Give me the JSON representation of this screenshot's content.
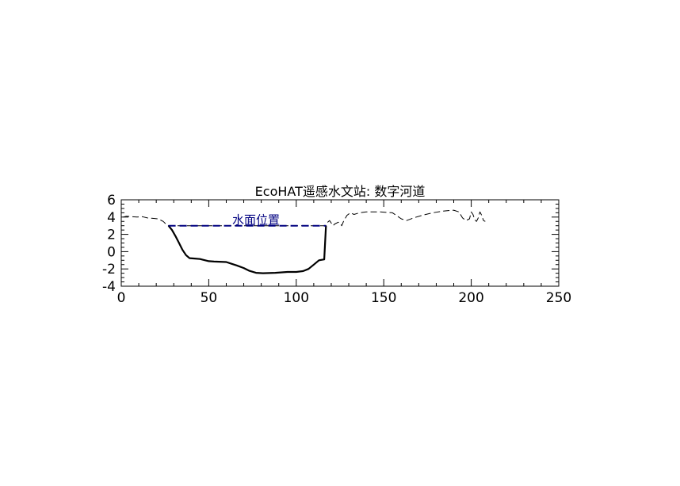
{
  "chart_data": {
    "type": "line",
    "title": "EcoHAT遥感水文站: 数字河道",
    "xlabel": "",
    "ylabel": "",
    "xlim": [
      0,
      250
    ],
    "ylim": [
      -4,
      6
    ],
    "x_ticks": [
      0,
      50,
      100,
      150,
      200,
      250
    ],
    "y_ticks": [
      -4,
      -2,
      0,
      2,
      4,
      6
    ],
    "x_minor_step": 10,
    "y_minor_step": 0.5,
    "grid": false,
    "annotations": [
      {
        "text": "水面位置",
        "x": 77,
        "y": 3.0
      }
    ],
    "series": [
      {
        "name": "",
        "style": "dashed",
        "color": "#000000",
        "points": [
          [
            1,
            4.0
          ],
          [
            3,
            4.1
          ],
          [
            6,
            4.05
          ],
          [
            9,
            4.0
          ],
          [
            12,
            4.05
          ],
          [
            15,
            3.9
          ],
          [
            18,
            3.85
          ],
          [
            21,
            3.8
          ],
          [
            24,
            3.5
          ],
          [
            26,
            3.1
          ],
          [
            27,
            3.0
          ],
          [
            117,
            3.0
          ],
          [
            118,
            3.4
          ],
          [
            119,
            3.6
          ],
          [
            120,
            3.3
          ],
          [
            121,
            3.0
          ],
          [
            122,
            3.2
          ],
          [
            124,
            3.4
          ],
          [
            125,
            3.3
          ],
          [
            126,
            3.0
          ],
          [
            127,
            3.5
          ],
          [
            129,
            4.2
          ],
          [
            131,
            4.5
          ],
          [
            133,
            4.3
          ],
          [
            136,
            4.5
          ],
          [
            140,
            4.6
          ],
          [
            148,
            4.6
          ],
          [
            155,
            4.5
          ],
          [
            160,
            3.8
          ],
          [
            163,
            3.6
          ],
          [
            167,
            3.9
          ],
          [
            172,
            4.2
          ],
          [
            178,
            4.5
          ],
          [
            184,
            4.7
          ],
          [
            190,
            4.8
          ],
          [
            193,
            4.6
          ],
          [
            195,
            3.9
          ],
          [
            197,
            3.6
          ],
          [
            199,
            3.8
          ],
          [
            200,
            4.6
          ],
          [
            201,
            4.3
          ],
          [
            202,
            3.7
          ],
          [
            203,
            3.5
          ],
          [
            204,
            3.9
          ],
          [
            205,
            4.6
          ],
          [
            206,
            4.2
          ],
          [
            207,
            3.6
          ],
          [
            208,
            3.5
          ]
        ]
      },
      {
        "name": "",
        "style": "solid",
        "color": "#000000",
        "points": [
          [
            27,
            3.0
          ],
          [
            29,
            2.5
          ],
          [
            31,
            1.8
          ],
          [
            33,
            1.0
          ],
          [
            35,
            0.2
          ],
          [
            37,
            -0.4
          ],
          [
            39,
            -0.75
          ],
          [
            42,
            -0.8
          ],
          [
            45,
            -0.85
          ],
          [
            50,
            -1.1
          ],
          [
            53,
            -1.15
          ],
          [
            60,
            -1.2
          ],
          [
            63,
            -1.4
          ],
          [
            66,
            -1.6
          ],
          [
            70,
            -1.9
          ],
          [
            73,
            -2.2
          ],
          [
            77,
            -2.45
          ],
          [
            81,
            -2.5
          ],
          [
            88,
            -2.45
          ],
          [
            95,
            -2.35
          ],
          [
            100,
            -2.35
          ],
          [
            104,
            -2.25
          ],
          [
            107,
            -2.0
          ],
          [
            110,
            -1.5
          ],
          [
            113,
            -1.0
          ],
          [
            116,
            -0.9
          ],
          [
            117,
            3.0
          ]
        ]
      },
      {
        "name": "",
        "style": "dashed",
        "color": "#000080",
        "points": [
          [
            27,
            3.0
          ],
          [
            117,
            3.0
          ]
        ]
      }
    ]
  }
}
